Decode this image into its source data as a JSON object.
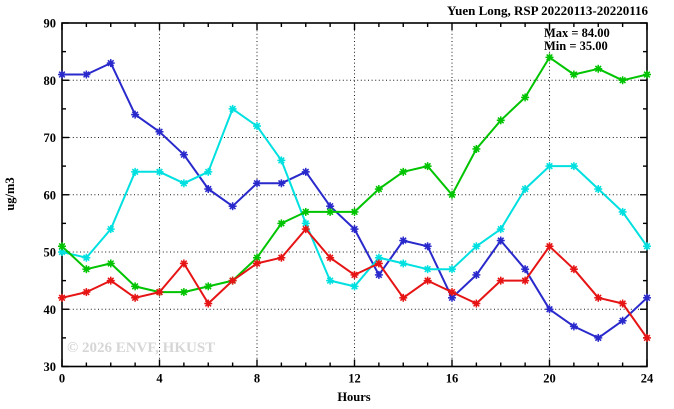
{
  "title": "Yuen Long, RSP 20220113-20220116",
  "stats": {
    "max_label": "Max = 84.00",
    "min_label": "Min = 35.00"
  },
  "watermark": "© 2026 ENVF, HKUST",
  "chart_data": {
    "type": "line",
    "title": "Yuen Long, RSP 20220113-20220116",
    "xlabel": "Hours",
    "ylabel": "ug/m3",
    "xlim": [
      0,
      24
    ],
    "ylim": [
      30,
      90
    ],
    "x_major_ticks": [
      0,
      4,
      8,
      12,
      16,
      20,
      24
    ],
    "x_minor_step": 1,
    "y_major_ticks": [
      30,
      40,
      50,
      60,
      70,
      80,
      90
    ],
    "y_minor_step": 5,
    "grid": true,
    "legend_position": "none",
    "annotations": [
      "Max = 84.00",
      "Min = 35.00"
    ],
    "x": [
      0,
      1,
      2,
      3,
      4,
      5,
      6,
      7,
      8,
      9,
      10,
      11,
      12,
      13,
      14,
      15,
      16,
      17,
      18,
      19,
      20,
      21,
      22,
      23,
      24
    ],
    "series": [
      {
        "name": "series-blue",
        "color": "#2929cc",
        "values": [
          81,
          81,
          83,
          74,
          71,
          67,
          61,
          58,
          62,
          62,
          64,
          58,
          54,
          46,
          52,
          51,
          42,
          46,
          52,
          47,
          40,
          37,
          35,
          38,
          42
        ]
      },
      {
        "name": "series-cyan",
        "color": "#00e0e0",
        "values": [
          50,
          49,
          54,
          64,
          64,
          62,
          64,
          75,
          72,
          66,
          55,
          45,
          44,
          49,
          48,
          47,
          47,
          51,
          54,
          61,
          65,
          65,
          61,
          57,
          51
        ]
      },
      {
        "name": "series-green",
        "color": "#00c400",
        "values": [
          51,
          47,
          48,
          44,
          43,
          43,
          44,
          45,
          49,
          55,
          57,
          57,
          57,
          61,
          64,
          65,
          60,
          68,
          73,
          77,
          84,
          81,
          82,
          80,
          81
        ]
      },
      {
        "name": "series-red",
        "color": "#e61414",
        "values": [
          42,
          43,
          45,
          42,
          43,
          48,
          41,
          45,
          48,
          49,
          54,
          49,
          46,
          48,
          42,
          45,
          43,
          41,
          45,
          45,
          51,
          47,
          42,
          41,
          35
        ]
      }
    ]
  }
}
